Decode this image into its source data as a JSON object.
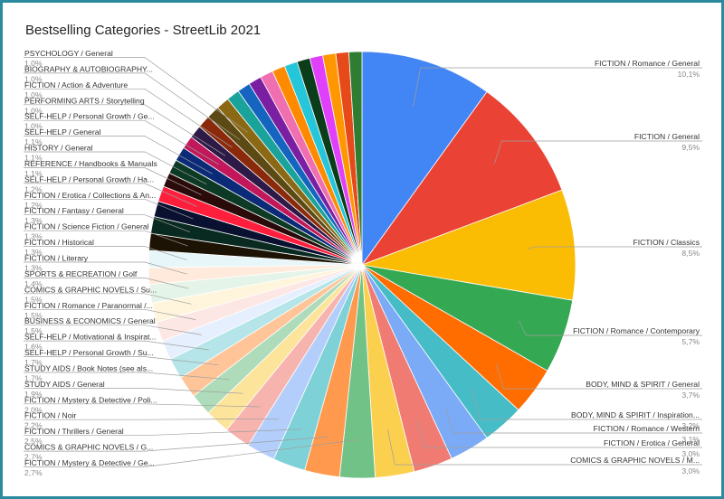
{
  "chart_data": {
    "type": "pie",
    "title": "Bestselling Categories - StreetLib 2021",
    "legend": "none",
    "slices": [
      {
        "label": "FICTION / Romance / General",
        "pct_label": "10,1%",
        "value": 10.1,
        "color": "#4285f4"
      },
      {
        "label": "FICTION / General",
        "pct_label": "9,5%",
        "value": 9.5,
        "color": "#ea4335"
      },
      {
        "label": "FICTION / Classics",
        "pct_label": "8,5%",
        "value": 8.5,
        "color": "#fbbc04"
      },
      {
        "label": "FICTION / Romance / Contemporary",
        "pct_label": "5,7%",
        "value": 5.7,
        "color": "#34a853"
      },
      {
        "label": "BODY, MIND & SPIRIT / General",
        "pct_label": "3,7%",
        "value": 3.7,
        "color": "#ff6d01"
      },
      {
        "label": "BODY, MIND & SPIRIT / Inspiration...",
        "pct_label": "3,2%",
        "value": 3.2,
        "color": "#46bdc6"
      },
      {
        "label": "FICTION / Romance / Western",
        "pct_label": "3,1%",
        "value": 3.1,
        "color": "#7baaf7"
      },
      {
        "label": "FICTION / Erotica / General",
        "pct_label": "3,0%",
        "value": 3.0,
        "color": "#f07b72"
      },
      {
        "label": "COMICS & GRAPHIC NOVELS / M...",
        "pct_label": "3,0%",
        "value": 3.0,
        "color": "#fcd04f"
      },
      {
        "label": "FICTION / Mystery & Detective / Ge...",
        "pct_label": "2,7%",
        "value": 2.7,
        "color": "#71c287"
      },
      {
        "label": "COMICS & GRAPHIC NOVELS / G...",
        "pct_label": "2,7%",
        "value": 2.7,
        "color": "#ff994d"
      },
      {
        "label": "FICTION / Thrillers / General",
        "pct_label": "2,5%",
        "value": 2.5,
        "color": "#7ed1d7"
      },
      {
        "label": "FICTION / Noir",
        "pct_label": "2,2%",
        "value": 2.2,
        "color": "#b3cefb"
      },
      {
        "label": "FICTION / Mystery & Detective / Poli...",
        "pct_label": "2,0%",
        "value": 2.0,
        "color": "#f7b4ae"
      },
      {
        "label": "STUDY AIDS / General",
        "pct_label": "1,9%",
        "value": 1.9,
        "color": "#fde49b"
      },
      {
        "label": "STUDY AIDS / Book Notes (see als...",
        "pct_label": "1,7%",
        "value": 1.7,
        "color": "#aedcba"
      },
      {
        "label": "SELF-HELP / Personal Growth / Su...",
        "pct_label": "1,7%",
        "value": 1.7,
        "color": "#ffc599"
      },
      {
        "label": "SELF-HELP / Motivational & Inspirat...",
        "pct_label": "1,6%",
        "value": 1.6,
        "color": "#b5e5e8"
      },
      {
        "label": "BUSINESS & ECONOMICS / General",
        "pct_label": "1,5%",
        "value": 1.5,
        "color": "#e6effe"
      },
      {
        "label": "FICTION / Romance / Paranormal /...",
        "pct_label": "1,5%",
        "value": 1.5,
        "color": "#fde7e5"
      },
      {
        "label": "COMICS & GRAPHIC NOVELS / Su...",
        "pct_label": "1,5%",
        "value": 1.5,
        "color": "#fff5dc"
      },
      {
        "label": "SPORTS & RECREATION / Golf",
        "pct_label": "1,4%",
        "value": 1.4,
        "color": "#e5f4e9"
      },
      {
        "label": "FICTION / Literary",
        "pct_label": "1,3%",
        "value": 1.3,
        "color": "#ffeadb"
      },
      {
        "label": "FICTION / Historical",
        "pct_label": "1,3%",
        "value": 1.3,
        "color": "#e7f6f8"
      },
      {
        "label": "FICTION / Science Fiction / General",
        "pct_label": "1,3%",
        "value": 1.3,
        "color": "#1c1305"
      },
      {
        "label": "FICTION / Fantasy / General",
        "pct_label": "1,3%",
        "value": 1.3,
        "color": "#082a20"
      },
      {
        "label": "FICTION / Erotica / Collections & An...",
        "pct_label": "1,2%",
        "value": 1.2,
        "color": "#0a1030"
      },
      {
        "label": "SELF-HELP / Personal Growth / Ha...",
        "pct_label": "1,2%",
        "value": 1.2,
        "color": "#ff1f3d"
      },
      {
        "label": "REFERENCE / Handbooks & Manuals",
        "pct_label": "1,1%",
        "value": 1.1,
        "color": "#2b0a0a"
      },
      {
        "label": "HISTORY / General",
        "pct_label": "1,1%",
        "value": 1.1,
        "color": "#0d3a25"
      },
      {
        "label": "SELF-HELP / General",
        "pct_label": "1,1%",
        "value": 1.1,
        "color": "#0b2a78"
      },
      {
        "label": "SELF-HELP / Personal Growth / Ge...",
        "pct_label": "1,0%",
        "value": 1.0,
        "color": "#c2185b"
      },
      {
        "label": "PERFORMING ARTS / Storytelling",
        "pct_label": "1,0%",
        "value": 1.0,
        "color": "#2e1a47"
      },
      {
        "label": "FICTION / Action & Adventure",
        "pct_label": "1,0%",
        "value": 1.0,
        "color": "#8b2a0a"
      },
      {
        "label": "BIOGRAPHY & AUTOBIOGRAPHY...",
        "pct_label": "1,0%",
        "value": 1.0,
        "color": "#5c4a14"
      },
      {
        "label": "PSYCHOLOGY / General",
        "pct_label": "1,0%",
        "value": 1.0,
        "color": "#8b6914"
      },
      {
        "label": "",
        "pct_label": "",
        "value": 1.0,
        "color": "#1aa39a"
      },
      {
        "label": "",
        "pct_label": "",
        "value": 1.0,
        "color": "#1565c0"
      },
      {
        "label": "",
        "pct_label": "",
        "value": 1.0,
        "color": "#7b1fa2"
      },
      {
        "label": "",
        "pct_label": "",
        "value": 1.0,
        "color": "#f06fb0"
      },
      {
        "label": "",
        "pct_label": "",
        "value": 1.0,
        "color": "#ff8a00"
      },
      {
        "label": "",
        "pct_label": "",
        "value": 1.0,
        "color": "#26c6da"
      },
      {
        "label": "",
        "pct_label": "",
        "value": 1.0,
        "color": "#0b3d1a"
      },
      {
        "label": "",
        "pct_label": "",
        "value": 1.0,
        "color": "#e040fb"
      },
      {
        "label": "",
        "pct_label": "",
        "value": 1.0,
        "color": "#ff9800"
      },
      {
        "label": "",
        "pct_label": "",
        "value": 1.0,
        "color": "#e64a19"
      },
      {
        "label": "",
        "pct_label": "",
        "value": 1.0,
        "color": "#2e7d32"
      }
    ]
  }
}
